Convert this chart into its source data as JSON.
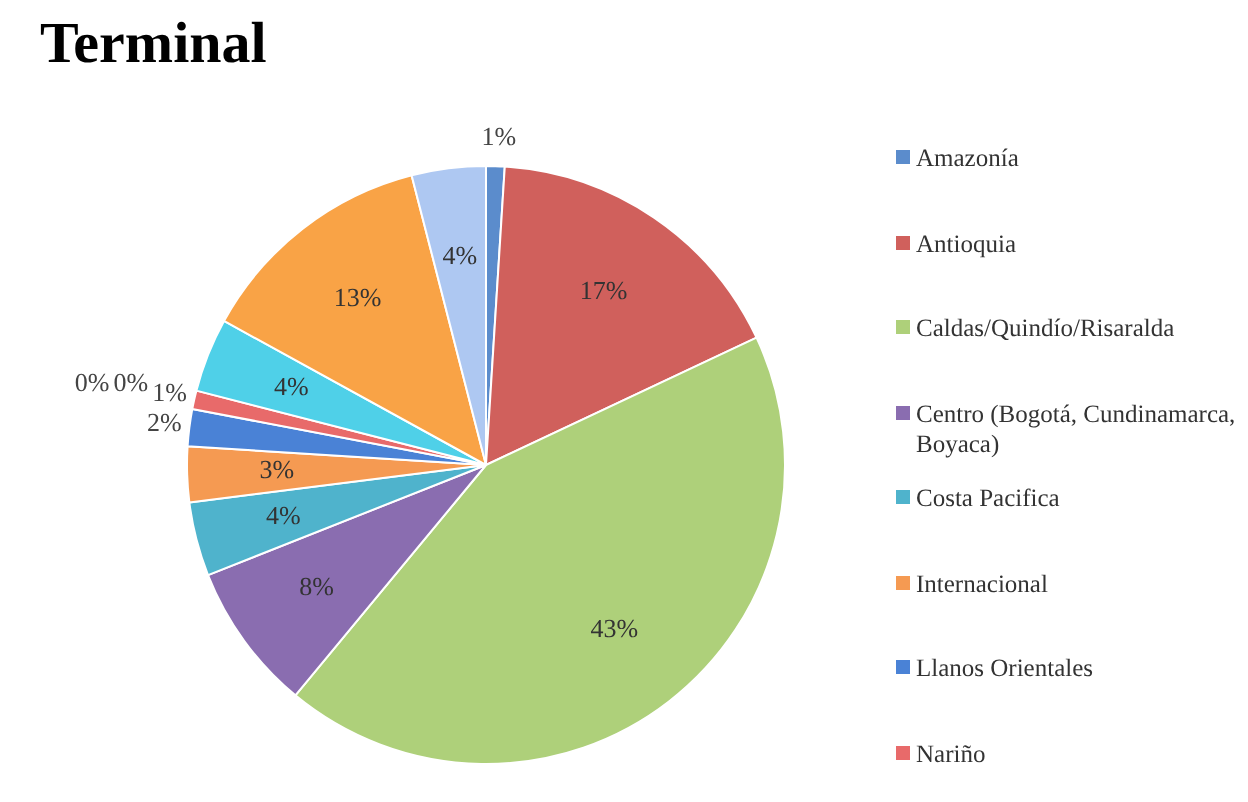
{
  "chart_data": {
    "type": "pie",
    "title": "Terminal",
    "categories": [
      "Amazonía",
      "Antioquia",
      "Caldas/Quindío/Risaralda",
      "Centro (Bogotá, Cundinamarca, Boyaca)",
      "Costa Pacifica",
      "Internacional",
      "Llanos Orientales",
      "Nariño",
      null,
      null,
      null,
      null,
      null
    ],
    "values": [
      1,
      17,
      43,
      8,
      4,
      3,
      2,
      1,
      0,
      0,
      4,
      13,
      4
    ],
    "value_labels": [
      "1%",
      "17%",
      "43%",
      "8%",
      "4%",
      "3%",
      "2%",
      "1%",
      "0%",
      "0%",
      "4%",
      "13%",
      "4%"
    ],
    "colors": [
      "#5b8ccc",
      "#d0605c",
      "#aed07a",
      "#8a6db0",
      "#4fb3cc",
      "#f59a52",
      "#4a82d6",
      "#e86a6a",
      "#b5d47c",
      "#a58cc8",
      "#4fd0e8",
      "#f9a346",
      "#aec8f2"
    ],
    "legend": "right"
  }
}
